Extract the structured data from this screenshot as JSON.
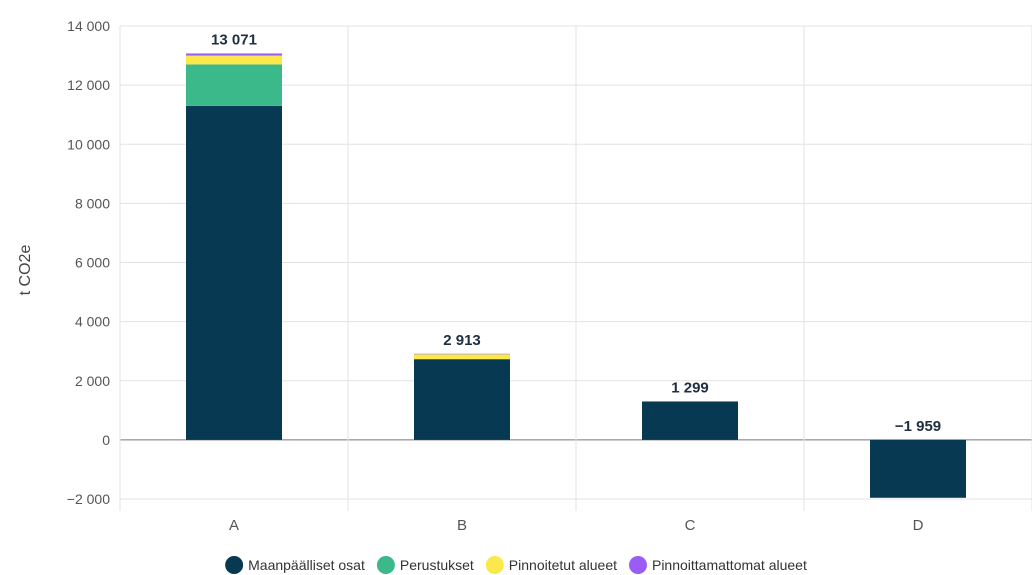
{
  "chart_data": {
    "type": "bar",
    "stacked": true,
    "categories": [
      "A",
      "B",
      "C",
      "D"
    ],
    "series": [
      {
        "name": "Maanpäälliset osat",
        "color": "#073a52",
        "values": [
          11300,
          2730,
          1299,
          -1959
        ]
      },
      {
        "name": "Perustukset",
        "color": "#3cb98a",
        "values": [
          1400,
          0,
          0,
          0
        ]
      },
      {
        "name": "Pinnoitetut alueet",
        "color": "#fbe84a",
        "values": [
          300,
          170,
          0,
          0
        ]
      },
      {
        "name": "Pinnoittamattomat alueet",
        "color": "#9b5cf6",
        "values": [
          71,
          13,
          0,
          0
        ]
      }
    ],
    "totals": [
      13071,
      2913,
      1299,
      -1959
    ],
    "total_labels": [
      "13 071",
      "2 913",
      "1 299",
      "−1 959"
    ],
    "ylabel": "t CO2e",
    "xlabel": "",
    "ylim": [
      -2000,
      14000
    ],
    "yticks": [
      14000,
      12000,
      10000,
      8000,
      6000,
      4000,
      2000,
      0,
      -2000
    ],
    "ytick_labels": [
      "14 000",
      "12 000",
      "10 000",
      "8 000",
      "6 000",
      "4 000",
      "2 000",
      "0",
      "−2 000"
    ],
    "grid": true,
    "legend_position": "bottom"
  }
}
